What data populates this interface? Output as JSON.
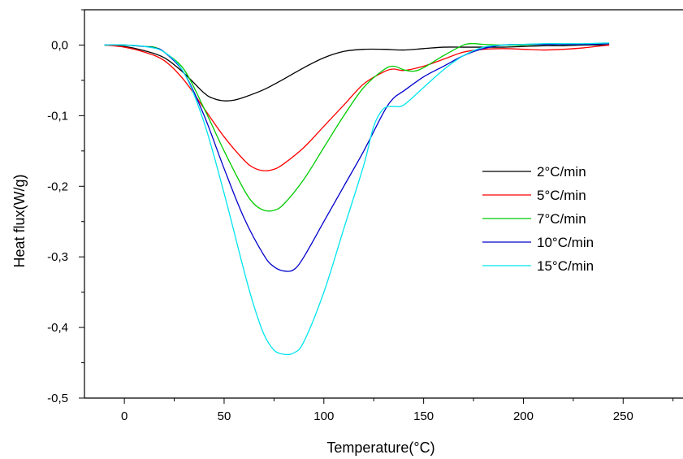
{
  "chart_data": {
    "type": "line",
    "title": "",
    "xlabel": "Temperature(°C)",
    "ylabel": "Heat flux(W/g)",
    "xlim": [
      -20,
      280
    ],
    "ylim": [
      -0.5,
      0.05
    ],
    "xticks": [
      0,
      50,
      100,
      150,
      200,
      250
    ],
    "xtick_labels": [
      "0",
      "50",
      "100",
      "150",
      "200",
      "250"
    ],
    "yticks": [
      0.0,
      -0.1,
      -0.2,
      -0.3,
      -0.4,
      -0.5
    ],
    "ytick_labels": [
      "0,0",
      "-0,1",
      "-0,2",
      "-0,3",
      "-0,4",
      "-0,5"
    ],
    "grid": false,
    "legend": "center-right",
    "series": [
      {
        "name": "2°C/min",
        "color": "#000000",
        "x": [
          -10,
          0,
          10,
          20,
          30,
          40,
          45,
          50,
          55,
          60,
          70,
          80,
          90,
          100,
          110,
          120,
          130,
          140,
          150,
          160,
          170,
          180,
          190,
          200,
          210,
          220,
          230,
          243
        ],
        "y": [
          0,
          -0.002,
          -0.008,
          -0.018,
          -0.04,
          -0.068,
          -0.076,
          -0.079,
          -0.078,
          -0.074,
          -0.063,
          -0.048,
          -0.032,
          -0.018,
          -0.009,
          -0.006,
          -0.006,
          -0.007,
          -0.005,
          -0.003,
          -0.003,
          -0.003,
          -0.003,
          -0.002,
          -0.001,
          -0.001,
          0,
          0
        ]
      },
      {
        "name": "5°C/min",
        "color": "#ff0000",
        "x": [
          -10,
          0,
          10,
          20,
          30,
          40,
          50,
          60,
          65,
          70,
          75,
          80,
          90,
          100,
          110,
          120,
          130,
          135,
          140,
          150,
          160,
          170,
          180,
          190,
          200,
          210,
          220,
          230,
          243
        ],
        "y": [
          0,
          -0.003,
          -0.01,
          -0.022,
          -0.05,
          -0.09,
          -0.13,
          -0.163,
          -0.174,
          -0.178,
          -0.176,
          -0.168,
          -0.145,
          -0.115,
          -0.085,
          -0.055,
          -0.038,
          -0.034,
          -0.036,
          -0.03,
          -0.02,
          -0.01,
          -0.006,
          -0.005,
          -0.006,
          -0.007,
          -0.006,
          -0.004,
          0
        ]
      },
      {
        "name": "7°C/min",
        "color": "#00cc00",
        "x": [
          -10,
          0,
          10,
          15,
          20,
          30,
          40,
          50,
          60,
          65,
          70,
          75,
          80,
          90,
          100,
          110,
          120,
          130,
          135,
          140,
          145,
          150,
          160,
          170,
          175,
          180,
          190,
          200,
          210,
          220,
          230,
          243
        ],
        "y": [
          0,
          0,
          -0.002,
          -0.003,
          -0.01,
          -0.035,
          -0.09,
          -0.15,
          -0.205,
          -0.225,
          -0.234,
          -0.234,
          -0.225,
          -0.19,
          -0.145,
          -0.1,
          -0.06,
          -0.035,
          -0.03,
          -0.035,
          -0.037,
          -0.032,
          -0.015,
          0,
          0.002,
          0.001,
          0,
          0,
          0.001,
          0.001,
          0.001,
          0.002
        ]
      },
      {
        "name": "10°C/min",
        "color": "#0000cc",
        "x": [
          -10,
          0,
          10,
          15,
          20,
          30,
          40,
          50,
          60,
          70,
          75,
          80,
          85,
          90,
          100,
          110,
          120,
          130,
          135,
          140,
          150,
          160,
          170,
          180,
          190,
          200,
          210,
          220,
          230,
          243
        ],
        "y": [
          0,
          0,
          -0.002,
          -0.004,
          -0.01,
          -0.04,
          -0.1,
          -0.175,
          -0.245,
          -0.298,
          -0.314,
          -0.32,
          -0.318,
          -0.3,
          -0.25,
          -0.2,
          -0.15,
          -0.095,
          -0.075,
          -0.065,
          -0.045,
          -0.03,
          -0.015,
          -0.005,
          0,
          0.001,
          0.001,
          0.001,
          0.001,
          0.002
        ]
      },
      {
        "name": "15°C/min",
        "color": "#00e5ee",
        "x": [
          -10,
          0,
          10,
          20,
          30,
          40,
          50,
          60,
          65,
          70,
          75,
          80,
          85,
          90,
          100,
          110,
          120,
          125,
          130,
          135,
          140,
          150,
          160,
          170,
          180,
          190,
          200,
          210,
          220,
          230,
          243
        ],
        "y": [
          0,
          0,
          -0.002,
          -0.01,
          -0.04,
          -0.11,
          -0.21,
          -0.32,
          -0.37,
          -0.41,
          -0.432,
          -0.438,
          -0.436,
          -0.42,
          -0.35,
          -0.26,
          -0.17,
          -0.115,
          -0.09,
          -0.087,
          -0.085,
          -0.06,
          -0.035,
          -0.015,
          -0.003,
          0,
          0.001,
          0.002,
          0.002,
          0.002,
          0.003
        ]
      }
    ]
  }
}
